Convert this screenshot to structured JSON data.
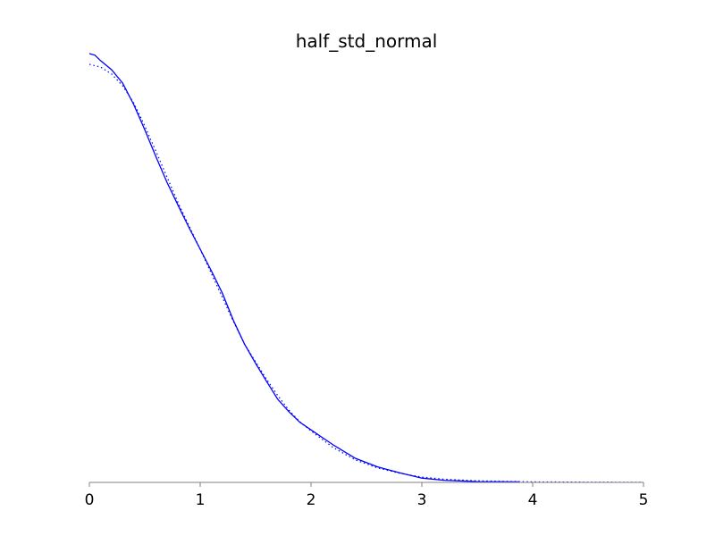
{
  "chart_data": {
    "type": "line",
    "title": "half_std_normal",
    "xlabel": "",
    "ylabel": "",
    "xlim": [
      0,
      5
    ],
    "ylim": [
      0,
      0.8
    ],
    "x_ticks": [
      "0",
      "1",
      "2",
      "3",
      "4",
      "5"
    ],
    "show_y_axis": false,
    "grid": false,
    "legend": "none",
    "series": [
      {
        "style": "solid",
        "color": "#0000ff",
        "x": [
          0,
          0.05,
          0.1,
          0.2,
          0.3,
          0.4,
          0.5,
          0.6,
          0.7,
          0.8,
          0.9,
          1.0,
          1.1,
          1.2,
          1.3,
          1.4,
          1.5,
          1.6,
          1.7,
          1.8,
          1.9,
          2.0,
          2.2,
          2.4,
          2.6,
          2.8,
          3.0,
          3.2,
          3.5,
          3.88
        ],
        "y": [
          0.8,
          0.797,
          0.787,
          0.77,
          0.745,
          0.705,
          0.658,
          0.608,
          0.56,
          0.517,
          0.475,
          0.435,
          0.395,
          0.353,
          0.302,
          0.258,
          0.222,
          0.188,
          0.155,
          0.132,
          0.112,
          0.098,
          0.07,
          0.045,
          0.029,
          0.018,
          0.008,
          0.004,
          0.0015,
          0.001
        ]
      },
      {
        "style": "dotted",
        "color": "#0000ff",
        "x": [
          0,
          0.1,
          0.2,
          0.3,
          0.4,
          0.5,
          0.6,
          0.7,
          0.8,
          0.9,
          1.0,
          1.1,
          1.2,
          1.3,
          1.4,
          1.5,
          1.6,
          1.7,
          1.8,
          1.9,
          2.0,
          2.2,
          2.4,
          2.6,
          2.8,
          3.0,
          3.2,
          3.5,
          4.0,
          4.5,
          5.0
        ],
        "y": [
          0.78,
          0.775,
          0.762,
          0.74,
          0.708,
          0.665,
          0.618,
          0.57,
          0.522,
          0.478,
          0.435,
          0.39,
          0.345,
          0.3,
          0.258,
          0.225,
          0.192,
          0.162,
          0.135,
          0.113,
          0.096,
          0.065,
          0.042,
          0.027,
          0.017,
          0.01,
          0.006,
          0.003,
          0.001,
          0.0005,
          0.0002
        ]
      }
    ]
  }
}
